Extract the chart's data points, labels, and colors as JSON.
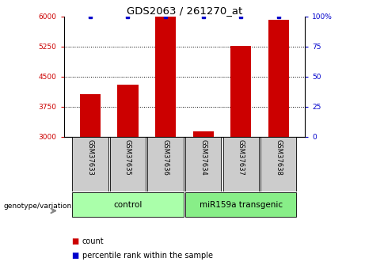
{
  "title": "GDS2063 / 261270_at",
  "samples": [
    "GSM37633",
    "GSM37635",
    "GSM37636",
    "GSM37634",
    "GSM37637",
    "GSM37638"
  ],
  "counts": [
    4050,
    4300,
    6000,
    3120,
    5270,
    5920
  ],
  "percentile_ranks": [
    100,
    100,
    100,
    100,
    100,
    100
  ],
  "ylim_left": [
    3000,
    6000
  ],
  "ylim_right": [
    0,
    100
  ],
  "yticks_left": [
    3000,
    3750,
    4500,
    5250,
    6000
  ],
  "yticks_right": [
    0,
    25,
    50,
    75,
    100
  ],
  "ytick_labels_right": [
    "0",
    "25",
    "50",
    "75",
    "100%"
  ],
  "hlines": [
    3750,
    4500,
    5250
  ],
  "bar_color": "#cc0000",
  "percentile_color": "#0000cc",
  "bar_width": 0.55,
  "legend_count_label": "count",
  "legend_pct_label": "percentile rank within the sample",
  "genotype_label": "genotype/variation",
  "bg_color": "#ffffff",
  "tick_color_left": "#cc0000",
  "tick_color_right": "#0000cc",
  "sample_bg_color": "#cccccc",
  "group_ranges": [
    [
      0,
      2,
      "control",
      "#aaffaa"
    ],
    [
      3,
      5,
      "miR159a transgenic",
      "#88ee88"
    ]
  ]
}
